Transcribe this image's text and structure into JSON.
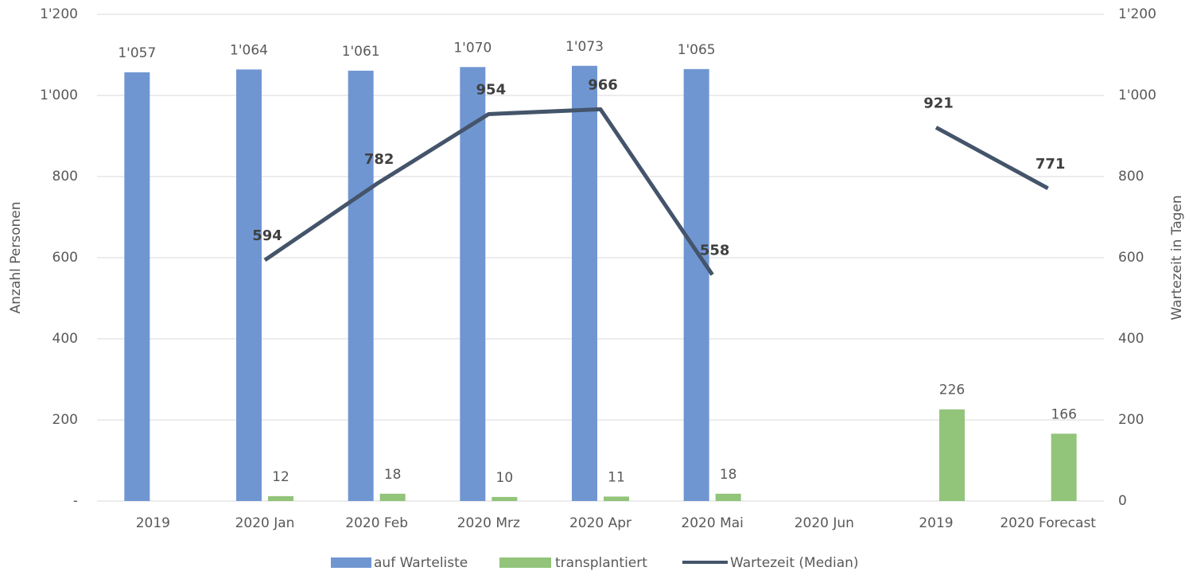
{
  "chart_data": {
    "type": "bar-line",
    "categories": [
      "2019",
      "2020 Jan",
      "2020 Feb",
      "2020 Mrz",
      "2020 Apr",
      "2020 Mai",
      "2020 Jun",
      "2019",
      "2020 Forecast"
    ],
    "series": [
      {
        "name": "auf Warteliste",
        "type": "bar",
        "color": "#7096d2",
        "values": [
          1057,
          1064,
          1061,
          1070,
          1073,
          1065,
          null,
          null,
          null
        ],
        "value_labels": [
          "1'057",
          "1'064",
          "1'061",
          "1'070",
          "1'073",
          "1'065",
          null,
          null,
          null
        ]
      },
      {
        "name": "transplantiert",
        "type": "bar",
        "color": "#92c47a",
        "values": [
          null,
          12,
          18,
          10,
          11,
          18,
          null,
          226,
          166
        ]
      },
      {
        "name": "Wartezeit (Median)",
        "type": "line",
        "color": "#44546a",
        "axis": "y2",
        "values": [
          null,
          594,
          782,
          954,
          966,
          558,
          null,
          921,
          771
        ]
      }
    ],
    "ylabel": "Anzahl Personen",
    "y2label": "Wartezeit in Tagen",
    "ylim": [
      0,
      1200
    ],
    "yticks": [
      {
        "value": 0,
        "label": "-"
      },
      200,
      400,
      600,
      800,
      {
        "value": 1000,
        "label": "1'000"
      },
      {
        "value": 1200,
        "label": "1'200"
      }
    ],
    "y2lim": [
      0,
      1200
    ],
    "y2ticks": [
      0,
      200,
      400,
      600,
      800,
      {
        "value": 1000,
        "label": "1'000"
      },
      {
        "value": 1200,
        "label": "1'200"
      }
    ],
    "grid": true,
    "legend": "bottom"
  }
}
